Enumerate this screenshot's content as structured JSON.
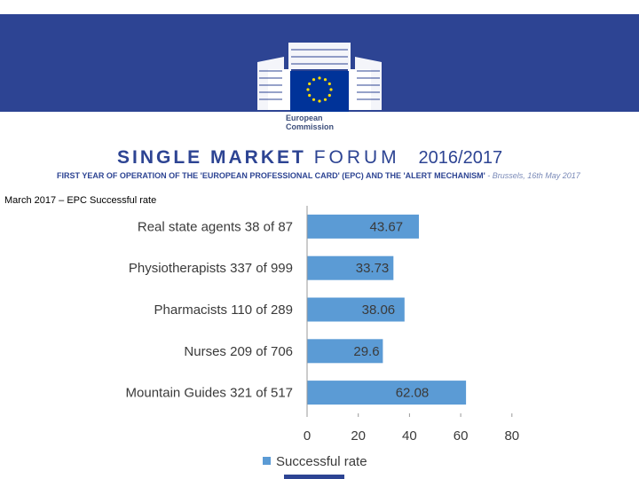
{
  "header": {
    "logo_line1": "European",
    "logo_line2": "Commission",
    "forum_bold": "SINGLE MARKET",
    "forum_light": "FORUM",
    "forum_year": "2016/2017",
    "subtitle_main": "FIRST YEAR OF OPERATION OF THE 'EUROPEAN PROFESSIONAL CARD' (EPC) AND THE 'ALERT MECHANISM'",
    "subtitle_place": " - Brussels, 16th May 2017"
  },
  "caption": "March 2017 – EPC Successful rate",
  "colors": {
    "brand": "#2d4493",
    "bar": "#5b9bd5"
  },
  "chart_data": {
    "type": "bar",
    "orientation": "horizontal",
    "categories": [
      "Real state agents 38 of 87",
      "Physiotherapists 337 of 999",
      "Pharmacists 110 of 289",
      "Nurses 209 of 706",
      "Mountain Guides 321 of 517"
    ],
    "series": [
      {
        "name": "Successful rate",
        "values": [
          43.67,
          33.73,
          38.06,
          29.6,
          62.08
        ]
      }
    ],
    "value_labels": [
      "43.67",
      "33.73",
      "38.06",
      "29.6",
      "62.08"
    ],
    "xlim": [
      0,
      80
    ],
    "ticks": [
      "0",
      "20",
      "40",
      "60",
      "80"
    ],
    "legend": "bottom",
    "grid": false
  }
}
